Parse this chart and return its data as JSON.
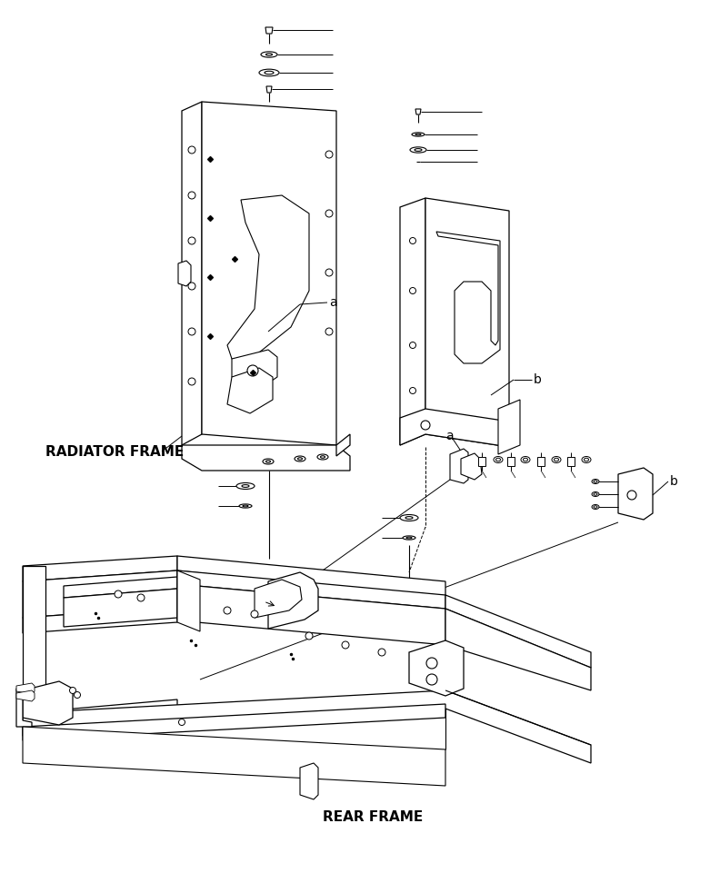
{
  "bg_color": "#ffffff",
  "lc": "#000000",
  "label_radiator_frame": "RADIATOR FRAME",
  "label_rear_frame": "REAR FRAME",
  "label_a1": "a",
  "label_b1": "b",
  "label_a2": "a",
  "label_b2": "b",
  "fs_main": 11,
  "fs_annot": 10
}
